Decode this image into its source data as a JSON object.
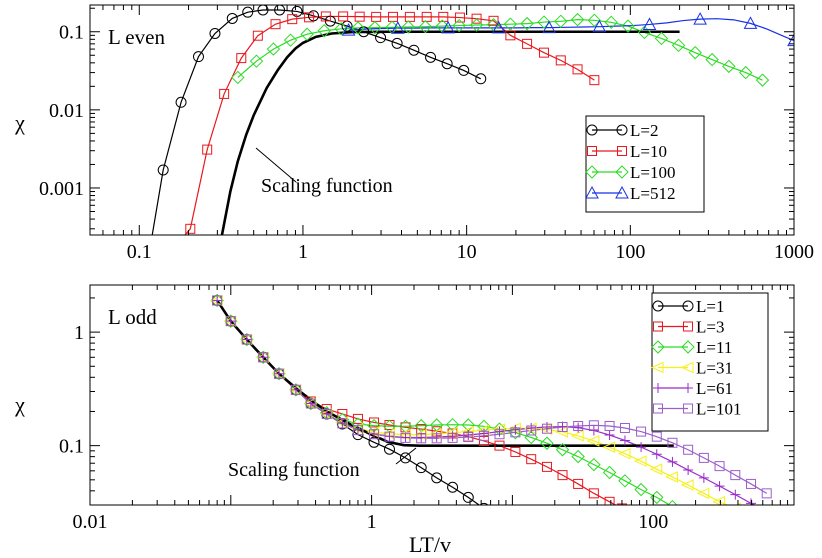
{
  "chart_data": [
    {
      "type": "line",
      "panel_label": "L even",
      "ylabel": "χ",
      "xlabel": "",
      "xscale": "log",
      "yscale": "log",
      "xlim": [
        0.05,
        1000
      ],
      "ylim": [
        0.00025,
        0.22
      ],
      "xticks": [
        {
          "v": 0.1,
          "label": "0.1"
        },
        {
          "v": 1,
          "label": "1"
        },
        {
          "v": 10,
          "label": "10"
        },
        {
          "v": 100,
          "label": "100"
        },
        {
          "v": 1000,
          "label": "1000"
        }
      ],
      "yticks": [
        {
          "v": 0.001,
          "label": "0.001"
        },
        {
          "v": 0.01,
          "label": "0.01"
        },
        {
          "v": 0.1,
          "label": "0.1"
        }
      ],
      "legend_position": "lower-right",
      "annotation": {
        "text": "Scaling function",
        "arrow_from": [
          0.52,
          0.0015
        ],
        "arrow_to": [
          0.55,
          0.0012
        ],
        "point_to": [
          0.42,
          0.0035
        ]
      },
      "scaling_function": {
        "color": "#000000",
        "x": [
          0.32,
          0.36,
          0.4,
          0.45,
          0.5,
          0.6,
          0.7,
          0.8,
          0.9,
          1.0,
          1.2,
          1.5,
          2.0,
          3.0,
          5.0,
          10,
          20,
          50,
          100,
          200
        ],
        "y": [
          0.00025,
          0.0009,
          0.0022,
          0.0048,
          0.0085,
          0.019,
          0.032,
          0.047,
          0.061,
          0.072,
          0.086,
          0.095,
          0.099,
          0.1,
          0.1,
          0.1,
          0.1,
          0.1,
          0.1,
          0.1
        ]
      },
      "series": [
        {
          "name": "L=2",
          "color": "#000000",
          "marker": "circle",
          "x": [
            0.12,
            0.14,
            0.18,
            0.23,
            0.29,
            0.37,
            0.46,
            0.57,
            0.72,
            0.92,
            1.16,
            1.47,
            1.86,
            2.35,
            2.98,
            3.76,
            4.76,
            6.02,
            7.6,
            9.6,
            12.2
          ],
          "y": [
            0.00025,
            0.0017,
            0.0125,
            0.048,
            0.095,
            0.148,
            0.178,
            0.19,
            0.19,
            0.182,
            0.16,
            0.137,
            0.118,
            0.1,
            0.084,
            0.071,
            0.058,
            0.047,
            0.039,
            0.032,
            0.025
          ],
          "markers_from": 1
        },
        {
          "name": "L=10",
          "color": "#e8191e",
          "marker": "square",
          "x": [
            0.19,
            0.205,
            0.26,
            0.33,
            0.42,
            0.53,
            0.68,
            0.86,
            1.09,
            1.38,
            1.76,
            2.22,
            2.8,
            3.55,
            4.5,
            5.7,
            7.2,
            9.1,
            11.5,
            14.6,
            18.5,
            23.4,
            29.7,
            37.6,
            47.6,
            60.3
          ],
          "y": [
            0.00025,
            0.0003,
            0.0031,
            0.016,
            0.046,
            0.089,
            0.125,
            0.145,
            0.153,
            0.157,
            0.157,
            0.156,
            0.155,
            0.155,
            0.155,
            0.155,
            0.155,
            0.152,
            0.147,
            0.138,
            0.09,
            0.07,
            0.054,
            0.043,
            0.033,
            0.024
          ],
          "markers_from": 1
        },
        {
          "name": "L=100",
          "color": "#2cdc24",
          "marker": "diamond",
          "x": [
            0.4,
            0.52,
            0.66,
            0.84,
            1.06,
            1.35,
            1.71,
            2.17,
            2.75,
            3.5,
            4.4,
            5.6,
            7.1,
            9.0,
            11.5,
            14.6,
            18.5,
            23.4,
            29.7,
            37.6,
            47.6,
            60.3,
            76.4,
            96.8,
            122,
            155,
            197,
            249,
            316,
            400,
            507,
            642
          ],
          "y": [
            0.026,
            0.042,
            0.06,
            0.078,
            0.093,
            0.103,
            0.109,
            0.112,
            0.113,
            0.114,
            0.115,
            0.116,
            0.118,
            0.12,
            0.122,
            0.123,
            0.125,
            0.127,
            0.133,
            0.136,
            0.143,
            0.14,
            0.132,
            0.118,
            0.098,
            0.082,
            0.067,
            0.054,
            0.044,
            0.036,
            0.03,
            0.024
          ],
          "markers_from": 0
        },
        {
          "name": "L=512",
          "color": "#1631e6",
          "marker": "triangle",
          "x": [
            1.9,
            2.4,
            3.0,
            3.8,
            4.8,
            6.1,
            7.7,
            9.8,
            12.4,
            15.7,
            19.9,
            25.2,
            31.9,
            40.4,
            51.1,
            64.7,
            81.9,
            104,
            131,
            167,
            211,
            267,
            338,
            428,
            542,
            687,
            869,
            1000
          ],
          "y": [
            0.105,
            0.108,
            0.11,
            0.111,
            0.111,
            0.112,
            0.112,
            0.112,
            0.112,
            0.112,
            0.112,
            0.113,
            0.113,
            0.114,
            0.115,
            0.116,
            0.118,
            0.12,
            0.124,
            0.13,
            0.139,
            0.145,
            0.147,
            0.142,
            0.128,
            0.108,
            0.087,
            0.077
          ],
          "markers_from": 0,
          "marker_every": 3
        }
      ]
    },
    {
      "type": "line",
      "panel_label": "L odd",
      "ylabel": "χ",
      "xlabel": "LT/v",
      "xscale": "log",
      "yscale": "log",
      "xlim": [
        0.01,
        1000
      ],
      "ylim": [
        0.03,
        2.6
      ],
      "xticks": [
        {
          "v": 0.01,
          "label": "0.01"
        },
        {
          "v": 1,
          "label": "1"
        },
        {
          "v": 100,
          "label": "100"
        }
      ],
      "xminor": [
        0.1,
        10
      ],
      "yticks": [
        {
          "v": 0.1,
          "label": "0.1"
        },
        {
          "v": 1,
          "label": "1"
        }
      ],
      "legend_position": "top-right",
      "annotation": {
        "text": "Scaling function",
        "arrow_from": [
          1.1,
          0.082
        ],
        "arrow_to": [
          2.1,
          0.094
        ]
      },
      "scaling_function": {
        "color": "#000000",
        "x": [
          0.08,
          0.1,
          0.13,
          0.17,
          0.22,
          0.3,
          0.4,
          0.5,
          0.7,
          1.0,
          1.3,
          1.7,
          2.2,
          3.0,
          5,
          10,
          30,
          60,
          100,
          140
        ],
        "y": [
          1.9,
          1.25,
          0.86,
          0.6,
          0.43,
          0.31,
          0.235,
          0.195,
          0.155,
          0.125,
          0.108,
          0.101,
          0.1,
          0.1,
          0.1,
          0.1,
          0.1,
          0.1,
          0.1,
          0.1
        ]
      },
      "series": [
        {
          "name": "L=1",
          "color": "#000000",
          "marker": "circle",
          "x": [
            0.08,
            0.1,
            0.13,
            0.17,
            0.22,
            0.29,
            0.37,
            0.48,
            0.62,
            0.8,
            1.04,
            1.34,
            1.74,
            2.25,
            2.9,
            3.76,
            4.86,
            6.28
          ],
          "y": [
            1.9,
            1.25,
            0.86,
            0.6,
            0.43,
            0.31,
            0.235,
            0.19,
            0.155,
            0.125,
            0.107,
            0.093,
            0.078,
            0.064,
            0.052,
            0.043,
            0.035,
            0.028
          ],
          "markers_from": 0
        },
        {
          "name": "L=3",
          "color": "#e8191e",
          "marker": "square",
          "x": [
            0.08,
            0.1,
            0.13,
            0.17,
            0.22,
            0.29,
            0.37,
            0.48,
            0.62,
            0.8,
            1.04,
            1.34,
            1.74,
            2.25,
            2.9,
            3.76,
            4.86,
            6.28,
            8.1,
            10.5,
            13.6,
            17.6,
            22.7,
            29.3,
            37.9,
            49,
            60
          ],
          "y": [
            1.9,
            1.25,
            0.86,
            0.6,
            0.43,
            0.31,
            0.245,
            0.21,
            0.19,
            0.172,
            0.16,
            0.152,
            0.145,
            0.14,
            0.134,
            0.128,
            0.12,
            0.11,
            0.1,
            0.088,
            0.076,
            0.065,
            0.055,
            0.046,
            0.038,
            0.032,
            0.028
          ],
          "markers_from": 0
        },
        {
          "name": "L=11",
          "color": "#2cdc24",
          "marker": "diamond",
          "x": [
            0.08,
            0.1,
            0.13,
            0.17,
            0.22,
            0.29,
            0.37,
            0.48,
            0.62,
            0.8,
            1.04,
            1.34,
            1.74,
            2.25,
            2.9,
            3.76,
            4.86,
            6.28,
            8.1,
            10.5,
            13.6,
            17.6,
            22.7,
            29.3,
            37.9,
            49,
            63,
            82,
            106,
            137
          ],
          "y": [
            1.9,
            1.25,
            0.86,
            0.6,
            0.43,
            0.31,
            0.235,
            0.195,
            0.17,
            0.155,
            0.15,
            0.148,
            0.148,
            0.15,
            0.152,
            0.153,
            0.152,
            0.148,
            0.14,
            0.13,
            0.118,
            0.105,
            0.092,
            0.08,
            0.068,
            0.058,
            0.049,
            0.041,
            0.035,
            0.029
          ],
          "markers_from": 0
        },
        {
          "name": "L=31",
          "color": "#f5f118",
          "marker": "tri-left",
          "x": [
            0.08,
            0.1,
            0.13,
            0.17,
            0.22,
            0.29,
            0.37,
            0.48,
            0.62,
            0.8,
            1.04,
            1.34,
            1.74,
            2.25,
            2.9,
            3.76,
            4.86,
            6.28,
            8.1,
            10.5,
            13.6,
            17.6,
            22.7,
            29.3,
            37.9,
            49,
            63,
            82,
            106,
            137,
            177,
            229,
            296,
            383
          ],
          "y": [
            1.9,
            1.25,
            0.86,
            0.6,
            0.43,
            0.31,
            0.235,
            0.19,
            0.16,
            0.142,
            0.132,
            0.127,
            0.125,
            0.125,
            0.127,
            0.13,
            0.133,
            0.137,
            0.14,
            0.142,
            0.142,
            0.139,
            0.132,
            0.122,
            0.11,
            0.097,
            0.085,
            0.073,
            0.062,
            0.053,
            0.045,
            0.038,
            0.032,
            0.028
          ],
          "markers_from": 0
        },
        {
          "name": "L=61",
          "color": "#9b2bc8",
          "marker": "plus",
          "x": [
            0.08,
            0.1,
            0.13,
            0.17,
            0.22,
            0.29,
            0.37,
            0.48,
            0.62,
            0.8,
            1.04,
            1.34,
            1.74,
            2.25,
            2.9,
            3.76,
            4.86,
            6.28,
            8.1,
            10.5,
            13.6,
            17.6,
            22.7,
            29.3,
            37.9,
            49,
            63,
            82,
            106,
            137,
            177,
            229,
            296,
            383,
            495,
            640
          ],
          "y": [
            1.9,
            1.25,
            0.86,
            0.6,
            0.43,
            0.31,
            0.235,
            0.19,
            0.158,
            0.138,
            0.127,
            0.121,
            0.118,
            0.118,
            0.119,
            0.121,
            0.124,
            0.128,
            0.133,
            0.138,
            0.143,
            0.146,
            0.147,
            0.144,
            0.136,
            0.124,
            0.111,
            0.097,
            0.084,
            0.072,
            0.061,
            0.052,
            0.044,
            0.037,
            0.031,
            0.027
          ],
          "markers_from": 0
        },
        {
          "name": "L=101",
          "color": "#9a5fc8",
          "marker": "square",
          "x": [
            0.08,
            0.1,
            0.13,
            0.17,
            0.22,
            0.29,
            0.37,
            0.48,
            0.62,
            0.8,
            1.04,
            1.34,
            1.74,
            2.25,
            2.9,
            3.76,
            4.86,
            6.28,
            8.1,
            10.5,
            13.6,
            17.6,
            22.7,
            29.3,
            37.9,
            49,
            63,
            82,
            106,
            137,
            177,
            229,
            296,
            383,
            495,
            640
          ],
          "y": [
            1.9,
            1.25,
            0.86,
            0.6,
            0.43,
            0.31,
            0.235,
            0.19,
            0.157,
            0.137,
            0.126,
            0.12,
            0.117,
            0.116,
            0.116,
            0.117,
            0.119,
            0.122,
            0.126,
            0.131,
            0.136,
            0.141,
            0.146,
            0.149,
            0.151,
            0.149,
            0.143,
            0.133,
            0.12,
            0.106,
            0.092,
            0.078,
            0.066,
            0.055,
            0.046,
            0.038
          ],
          "markers_from": 0
        }
      ]
    }
  ]
}
